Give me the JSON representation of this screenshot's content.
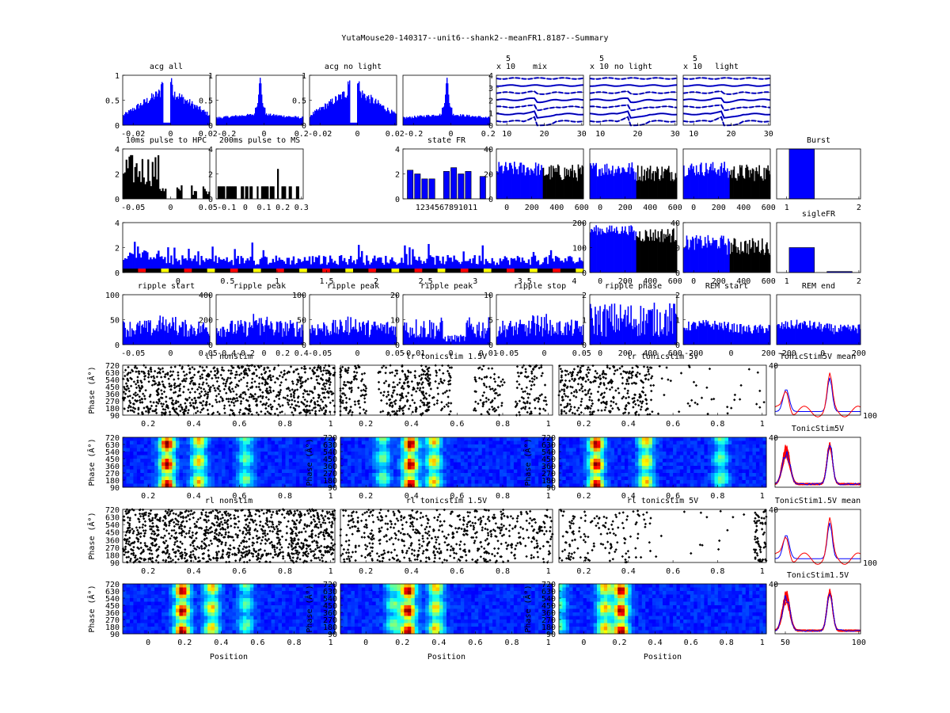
{
  "figure": {
    "title": "YutaMouse20-140317--unit6--shank2--meanFR1.8187--Summary"
  },
  "chart_data": [
    {
      "id": "acg_all",
      "type": "bar",
      "title": "acg all",
      "xticks": [
        "-0.02",
        "0",
        "0.02"
      ],
      "yticks": [
        "0",
        "0.5",
        "1"
      ],
      "xlim": [
        -0.025,
        0.025
      ],
      "ylim": [
        0,
        1
      ],
      "shape": "acg_dip",
      "color": "#0000ff"
    },
    {
      "id": "acg_wide",
      "type": "bar",
      "title": "",
      "xticks": [
        "-0.2",
        "0",
        "0.2"
      ],
      "yticks": [
        "0",
        "0.5",
        "1"
      ],
      "xlim": [
        -0.25,
        0.25
      ],
      "ylim": [
        0,
        1
      ],
      "shape": "acg_peak",
      "color": "#0000ff"
    },
    {
      "id": "acg_nolight",
      "type": "bar",
      "title": "acg no light",
      "xticks": [
        "-0.02",
        "0",
        "0.02"
      ],
      "yticks": [
        "0",
        "0.5",
        "1"
      ],
      "xlim": [
        -0.025,
        0.025
      ],
      "ylim": [
        0,
        1
      ],
      "shape": "acg_dip",
      "color": "#0000ff"
    },
    {
      "id": "acg_nolight_wide",
      "type": "bar",
      "title": "",
      "xticks": [
        "-0.2",
        "0",
        "0.2"
      ],
      "yticks": [],
      "xlim": [
        -0.25,
        0.25
      ],
      "ylim": [
        0,
        1
      ],
      "shape": "acg_peak",
      "color": "#0000ff"
    },
    {
      "id": "wave_mix",
      "type": "line",
      "title": "mix",
      "exponent": "x 10",
      "exponent_power": "5",
      "xticks": [
        "10",
        "20",
        "30"
      ],
      "yticks": [
        "0",
        "1",
        "2",
        "3",
        "4"
      ],
      "xlim": [
        1,
        32
      ],
      "ylim": [
        0,
        4.5
      ],
      "shape": "waveforms"
    },
    {
      "id": "wave_nolight",
      "type": "line",
      "title": "no light",
      "exponent": "x 10",
      "exponent_power": "5",
      "xticks": [
        "10",
        "20",
        "30"
      ],
      "yticks": [],
      "xlim": [
        1,
        32
      ],
      "ylim": [
        0,
        4.5
      ],
      "shape": "waveforms"
    },
    {
      "id": "wave_light",
      "type": "line",
      "title": "light",
      "exponent": "x 10",
      "exponent_power": "5",
      "xticks": [
        "10",
        "20",
        "30"
      ],
      "yticks": [],
      "xlim": [
        1,
        32
      ],
      "ylim": [
        0,
        4.5
      ],
      "shape": "waveforms"
    },
    {
      "id": "pulse_hpc",
      "type": "bar",
      "title": "10ms pulse to HPC",
      "xticks": [
        "-0.05",
        "0",
        "0.05"
      ],
      "yticks": [
        "0",
        "2",
        "4"
      ],
      "xlim": [
        -0.1,
        0.1
      ],
      "ylim": [
        0,
        4
      ],
      "shape": "sparse_black"
    },
    {
      "id": "pulse_ms",
      "type": "bar",
      "title": "200ms pulse to MS",
      "xticks": [
        "-0.1",
        "0",
        "0.1",
        "0.2",
        "0.3"
      ],
      "yticks": [
        "0",
        "2",
        "4"
      ],
      "xlim": [
        -0.15,
        0.35
      ],
      "ylim": [
        0,
        4
      ],
      "shape": "sparse_black2"
    },
    {
      "id": "state_fr",
      "type": "bar",
      "title": "state FR",
      "categories": [
        "1",
        "2",
        "3",
        "4",
        "5",
        "6",
        "7",
        "8",
        "9",
        "10",
        "11"
      ],
      "values": [
        2.3,
        2.0,
        1.6,
        1.6,
        0,
        2.2,
        2.5,
        2.0,
        2.2,
        0,
        1.8
      ],
      "yticks": [
        "0",
        "2",
        "4"
      ],
      "ylim": [
        0,
        4
      ],
      "xtick_label": "1234567891011"
    },
    {
      "id": "fr_time1",
      "type": "bar",
      "title": "",
      "xticks": [
        "0",
        "200",
        "400",
        "600"
      ],
      "yticks": [
        "0",
        "20",
        "40"
      ],
      "xlim": [
        0,
        700
      ],
      "ylim": [
        0,
        40
      ],
      "shape": "time_split",
      "split": 370
    },
    {
      "id": "fr_time2",
      "type": "bar",
      "title": "",
      "xticks": [
        "0",
        "200",
        "400",
        "600"
      ],
      "yticks": [],
      "xlim": [
        0,
        700
      ],
      "ylim": [
        0,
        40
      ],
      "shape": "time_split",
      "split": 370
    },
    {
      "id": "fr_time3",
      "type": "bar",
      "title": "",
      "xticks": [
        "0",
        "200",
        "400",
        "600"
      ],
      "yticks": [],
      "xlim": [
        0,
        700
      ],
      "ylim": [
        0,
        40
      ],
      "shape": "time_split",
      "split": 370
    },
    {
      "id": "burst",
      "type": "bar",
      "title": "Burst",
      "categories": [
        "1",
        "2"
      ],
      "values": [
        1,
        0
      ],
      "xticks": [
        "1",
        "2"
      ],
      "yticks": [],
      "ylim": [
        0,
        1
      ]
    },
    {
      "id": "fr_long",
      "type": "area",
      "title": "",
      "xticks": [
        "0",
        "0.5",
        "1",
        "1.5",
        "2",
        "2.5",
        "3",
        "3.5",
        "4"
      ],
      "yticks": [
        "0",
        "2",
        "4"
      ],
      "xlim": [
        0,
        4.25
      ],
      "ylim": [
        0,
        5
      ],
      "shape": "long_trace"
    },
    {
      "id": "fr_time4",
      "type": "bar",
      "title": "",
      "xticks": [
        "0",
        "200",
        "400",
        "600"
      ],
      "yticks": [
        "0",
        "100",
        "200"
      ],
      "xlim": [
        0,
        700
      ],
      "ylim": [
        0,
        200
      ],
      "shape": "time_split",
      "split": 370
    },
    {
      "id": "fr_time5",
      "type": "bar",
      "title": "",
      "xticks": [
        "0",
        "200",
        "400",
        "600"
      ],
      "yticks": [
        "0",
        "20",
        "40"
      ],
      "xlim": [
        0,
        700
      ],
      "ylim": [
        0,
        40
      ],
      "shape": "time_split",
      "split": 370
    },
    {
      "id": "siglefr",
      "type": "bar",
      "title": "sigleFR",
      "categories": [
        "1",
        "2"
      ],
      "values": [
        0.5,
        0.02
      ],
      "xticks": [
        "1",
        "2"
      ],
      "yticks": [],
      "ylim": [
        0,
        1
      ]
    },
    {
      "id": "ripple_start",
      "type": "bar",
      "title": "ripple start",
      "xticks": [
        "-0.05",
        "0",
        "0.05"
      ],
      "yticks": [
        "0",
        "50",
        "100"
      ],
      "xlim": [
        -0.1,
        0.1
      ],
      "ylim": [
        0,
        100
      ],
      "shape": "dense_black"
    },
    {
      "id": "ripple_peak1",
      "type": "bar",
      "title": "ripple peak",
      "xticks": [
        "-0.4",
        "-0.2",
        "0",
        "0.2",
        "0.4"
      ],
      "yticks": [
        "0",
        "200",
        "400"
      ],
      "xlim": [
        -0.5,
        0.5
      ],
      "ylim": [
        0,
        400
      ],
      "shape": "dense_black"
    },
    {
      "id": "ripple_peak2",
      "type": "bar",
      "title": "ripple peak",
      "xticks": [
        "-0.05",
        "0",
        "0.05"
      ],
      "yticks": [
        "0",
        "50",
        "100"
      ],
      "xlim": [
        -0.1,
        0.1
      ],
      "ylim": [
        0,
        100
      ],
      "shape": "dense_black"
    },
    {
      "id": "ripple_peak3",
      "type": "bar",
      "title": "ripple peak",
      "xticks": [
        "-0.01",
        "0",
        "0.01"
      ],
      "yticks": [
        "0",
        "10",
        "20"
      ],
      "xlim": [
        -0.015,
        0.015
      ],
      "ylim": [
        0,
        20
      ],
      "shape": "dense_black_gap"
    },
    {
      "id": "ripple_stop",
      "type": "bar",
      "title": "ripple stop",
      "xticks": [
        "-0.05",
        "0",
        "0.05"
      ],
      "yticks": [
        "0",
        "5",
        "10"
      ],
      "xlim": [
        -0.1,
        0.1
      ],
      "ylim": [
        0,
        10
      ],
      "shape": "dense_black"
    },
    {
      "id": "ripple_phase",
      "type": "bar",
      "title": "ripple phase",
      "xticks": [
        "0",
        "200",
        "400",
        "600"
      ],
      "yticks": [
        "0",
        "1",
        "2"
      ],
      "xlim": [
        0,
        700
      ],
      "ylim": [
        0,
        2
      ],
      "shape": "dense_black_high"
    },
    {
      "id": "rem_start",
      "type": "bar",
      "title": "REM start",
      "xticks": [
        "-200",
        "0",
        "200"
      ],
      "yticks": [
        "0",
        "1",
        "2"
      ],
      "xlim": [
        -300,
        300
      ],
      "ylim": [
        0,
        2
      ],
      "shape": "dense_black_low"
    },
    {
      "id": "rem_end",
      "type": "bar",
      "title": "REM end",
      "xticks": [
        "-200",
        "0",
        "200"
      ],
      "yticks": [],
      "xlim": [
        -300,
        300
      ],
      "ylim": [
        0,
        2
      ],
      "shape": "dense_black_low"
    },
    {
      "id": "lr_nonstim",
      "type": "scatter",
      "title": "lr nonstim",
      "xticks": [
        "0.2",
        "0.4",
        "0.6",
        "0.8",
        "1"
      ],
      "yticks": [
        "90",
        "180",
        "270",
        "360",
        "450",
        "540",
        "630",
        "720"
      ],
      "xlim": [
        0,
        1
      ],
      "ylim": [
        0,
        720
      ],
      "ylabel": "Phase (Â°)",
      "shape": "raster_dense"
    },
    {
      "id": "lr_tonic15",
      "type": "scatter",
      "title": "lr tonicstim 1.5V",
      "xticks": [
        "0.2",
        "0.4",
        "0.6",
        "0.8",
        "1"
      ],
      "yticks": [],
      "xlim": [
        0,
        1
      ],
      "ylim": [
        0,
        720
      ],
      "shape": "raster_bands"
    },
    {
      "id": "lr_tonic5",
      "type": "scatter",
      "title": "lr tonicstim 5V",
      "xticks": [
        "0.2",
        "0.4",
        "0.6",
        "0.8",
        "1"
      ],
      "yticks": [],
      "xlim": [
        0,
        1
      ],
      "ylim": [
        0,
        720
      ],
      "shape": "raster_left"
    },
    {
      "id": "tonic5_mean",
      "type": "line",
      "title": "TonicStim5V mean",
      "xticks": [],
      "yticks": [],
      "xlim": [
        0,
        100
      ],
      "ylim": [
        0,
        1
      ],
      "shape": "mean_curves"
    },
    {
      "id": "heat_lr_nonstim",
      "type": "heatmap",
      "title": "",
      "xticks": [
        "0.2",
        "0.4",
        "0.6",
        "0.8",
        "1"
      ],
      "yticks": [
        "90",
        "180",
        "270",
        "360",
        "450",
        "540",
        "630",
        "720"
      ],
      "xlim": [
        0,
        1
      ],
      "ylim": [
        0,
        720
      ],
      "ylabel": "Phase (Â°)",
      "peaks": [
        0.21,
        0.36,
        0.58
      ],
      "colormap": "jet"
    },
    {
      "id": "heat_lr_tonic15",
      "type": "heatmap",
      "title": "",
      "xticks": [
        "0.2",
        "0.4",
        "0.6",
        "0.8",
        "1"
      ],
      "yticks": [
        "90",
        "180",
        "270",
        "360",
        "450",
        "540",
        "630",
        "720"
      ],
      "xlim": [
        0,
        1
      ],
      "ylim": [
        0,
        720
      ],
      "ylabel": "Phase (Â°)",
      "peaks": [
        0.33,
        0.44,
        0.2
      ],
      "colormap": "jet"
    },
    {
      "id": "heat_lr_tonic5",
      "type": "heatmap",
      "title": "",
      "xticks": [
        "0.2",
        "0.4",
        "0.6",
        "0.8",
        "1"
      ],
      "yticks": [
        "90",
        "180",
        "270",
        "360",
        "450",
        "540",
        "630",
        "720"
      ],
      "xlim": [
        0,
        1
      ],
      "ylim": [
        0,
        720
      ],
      "ylabel": "Phase (Â°)",
      "peaks": [
        0.18,
        0.42,
        0.78
      ],
      "colormap": "jet"
    },
    {
      "id": "tonic5_all",
      "type": "line",
      "title": "TonicStim5V",
      "xticks": [],
      "yticks": [],
      "xlim": [
        0,
        100
      ],
      "ylim": [
        0,
        1
      ],
      "shape": "many_curves"
    },
    {
      "id": "rl_nonstim",
      "type": "scatter",
      "title": "rl nonstim",
      "xticks": [
        "0.2",
        "0.4",
        "0.6",
        "0.8",
        "1"
      ],
      "yticks": [
        "90",
        "180",
        "270",
        "360",
        "450",
        "540",
        "630",
        "720"
      ],
      "xlim": [
        0,
        1
      ],
      "ylim": [
        0,
        720
      ],
      "ylabel": "Phase (Â°)",
      "shape": "raster_very_dense"
    },
    {
      "id": "rl_tonic15",
      "type": "scatter",
      "title": "rl tonicstim 1.5V",
      "xticks": [
        "0.2",
        "0.4",
        "0.6",
        "0.8",
        "1"
      ],
      "yticks": [],
      "xlim": [
        0,
        1
      ],
      "ylim": [
        0,
        720
      ],
      "shape": "raster_mid"
    },
    {
      "id": "rl_tonic5",
      "type": "scatter",
      "title": "rl tonicstim 5V",
      "xticks": [
        "0.2",
        "0.4",
        "0.6",
        "0.8",
        "1"
      ],
      "yticks": [],
      "xlim": [
        0,
        1
      ],
      "ylim": [
        0,
        720
      ],
      "shape": "raster_sparse"
    },
    {
      "id": "tonic15_mean",
      "type": "line",
      "title": "TonicStim1.5V mean",
      "xticks": [],
      "yticks": [],
      "xlim": [
        0,
        100
      ],
      "ylim": [
        0,
        1
      ],
      "shape": "mean_curves"
    },
    {
      "id": "heat_rl_nonstim",
      "type": "heatmap",
      "title": "",
      "xticks": [
        "0",
        "0.2",
        "0.4",
        "0.6",
        "0.8",
        "1"
      ],
      "yticks": [
        "90",
        "180",
        "270",
        "360",
        "450",
        "540",
        "630",
        "720"
      ],
      "xlim": [
        0,
        1
      ],
      "ylim": [
        0,
        720
      ],
      "ylabel": "Phase (Â°)",
      "xlabel": "Position",
      "peaks": [
        0.28,
        0.42,
        0.58
      ],
      "colormap": "jet"
    },
    {
      "id": "heat_rl_tonic15",
      "type": "heatmap",
      "title": "",
      "xticks": [
        "0",
        "0.2",
        "0.4",
        "0.6",
        "0.8",
        "1"
      ],
      "yticks": [
        "90",
        "180",
        "270",
        "360",
        "450",
        "540",
        "630",
        "720"
      ],
      "xlim": [
        0,
        1
      ],
      "ylim": [
        0,
        720
      ],
      "ylabel": "Phase (Â°)",
      "xlabel": "Position",
      "peaks": [
        0.32,
        0.45,
        0.25
      ],
      "colormap": "jet"
    },
    {
      "id": "heat_rl_tonic5",
      "type": "heatmap",
      "title": "",
      "xticks": [
        "0",
        "0.2",
        "0.4",
        "0.6",
        "0.8",
        "1"
      ],
      "yticks": [
        "90",
        "180",
        "270",
        "360",
        "450",
        "540",
        "630",
        "720"
      ],
      "xlim": [
        0,
        1
      ],
      "ylim": [
        0,
        720
      ],
      "ylabel": "Phase (Â°)",
      "xlabel": "Position",
      "peaks": [
        0.3,
        0.22,
        0.0
      ],
      "colormap": "jet"
    },
    {
      "id": "tonic15_all",
      "type": "line",
      "title": "TonicStim1.5V",
      "xticks": [
        "50",
        "100"
      ],
      "xlim": [
        0,
        100
      ],
      "yticks": [],
      "ylim": [
        0,
        1
      ],
      "shape": "many_curves"
    }
  ],
  "extra_ticks": {
    "raster_tr": "40",
    "heat_tr": "40",
    "tonic_right": "100",
    "zero": "0"
  }
}
